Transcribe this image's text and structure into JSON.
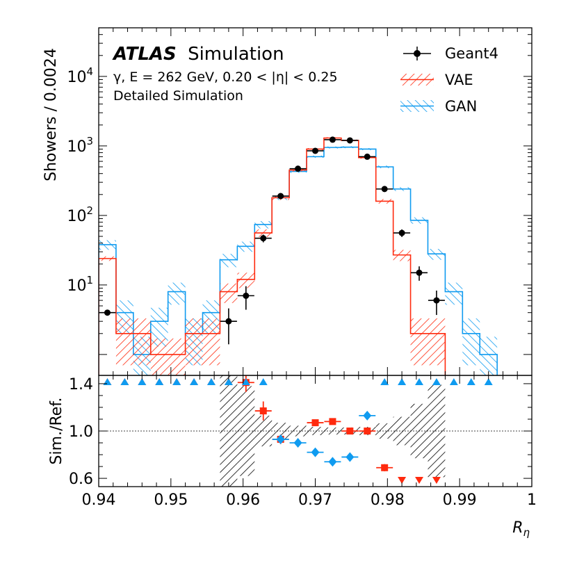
{
  "chart_data": [
    {
      "type": "histogram",
      "panel": "main",
      "ylabel": "Showers / 0.0024",
      "yscale": "log",
      "ylim": [
        0.5,
        50000
      ],
      "xlim": [
        0.94,
        1.0
      ],
      "experiment_label": "ATLAS",
      "experiment_suffix": "Simulation",
      "info_lines": [
        "γ, E = 262 GeV, 0.20 < |η| < 0.25",
        "Detailed Simulation"
      ],
      "legend": {
        "placement": "top-right",
        "entries": [
          {
            "label": "Geant4",
            "style": "marker"
          },
          {
            "label": "VAE",
            "style": "hatch",
            "color": "#ff2a0e"
          },
          {
            "label": "GAN",
            "style": "hatch",
            "color": "#0f9bf0"
          }
        ]
      },
      "bin_edges": [
        0.94,
        0.9424,
        0.9448,
        0.9472,
        0.9496,
        0.952,
        0.9544,
        0.9568,
        0.9592,
        0.9616,
        0.964,
        0.9664,
        0.9688,
        0.9712,
        0.9736,
        0.976,
        0.9784,
        0.9808,
        0.9832,
        0.9856,
        0.988,
        0.9904,
        0.9928,
        0.9952
      ],
      "series": [
        {
          "name": "Geant4",
          "color": "#000000",
          "x": [
            0.9412,
            0.958,
            0.9604,
            0.9628,
            0.9652,
            0.9676,
            0.97,
            0.9724,
            0.9748,
            0.9772,
            0.9796,
            0.982,
            0.9844,
            0.9868
          ],
          "values": [
            4,
            3,
            7,
            47,
            190,
            470,
            850,
            1230,
            1200,
            700,
            240,
            56,
            15,
            6
          ],
          "errors": [
            0,
            1.6,
            2.6,
            6,
            12,
            20,
            28,
            34,
            33,
            26,
            15,
            7,
            3.5,
            2.3
          ]
        },
        {
          "name": "VAE",
          "color": "#ff2a0e",
          "values": [
            24,
            2,
            2,
            1,
            1,
            2,
            2,
            8,
            12,
            56,
            180,
            450,
            900,
            1300,
            1200,
            680,
            160,
            27,
            2,
            2,
            null,
            null,
            null
          ],
          "uncertainty": [
            1.8,
            1.3,
            1.3,
            0.7,
            0.7,
            1.3,
            1.3,
            2.5,
            3,
            7,
            13,
            21,
            30,
            36,
            34,
            26,
            12,
            5,
            1.3,
            1.3,
            0,
            0,
            0
          ]
        },
        {
          "name": "GAN",
          "color": "#0f9bf0",
          "values": [
            38,
            4,
            1,
            3,
            8,
            2,
            4,
            23,
            36,
            74,
            180,
            430,
            700,
            950,
            960,
            900,
            500,
            240,
            85,
            28,
            8,
            2,
            1
          ],
          "uncertainty": [
            6,
            2,
            0.8,
            1.7,
            2.8,
            1.3,
            2,
            5,
            6,
            9,
            13,
            21,
            26,
            31,
            31,
            30,
            22,
            15,
            9,
            5,
            2.8,
            1.3,
            0.8
          ]
        }
      ]
    },
    {
      "type": "ratio",
      "panel": "ratio",
      "xlabel": "R_η",
      "ylabel": "Sim./Ref.",
      "ylim": [
        0.53,
        1.47
      ],
      "yticks": [
        0.6,
        1.0,
        1.4
      ],
      "xticks": [
        0.94,
        0.95,
        0.96,
        0.97,
        0.98,
        0.99,
        1.0
      ],
      "xtick_labels": [
        "0.94",
        "0.95",
        "0.96",
        "0.97",
        "0.98",
        "0.99",
        "1"
      ],
      "reference_band": {
        "x_edges": [
          0.9568,
          0.9592,
          0.9616,
          0.964,
          0.9664,
          0.9688,
          0.9712,
          0.9736,
          0.976,
          0.9784,
          0.9808,
          0.9832,
          0.9856,
          0.988
        ],
        "half_width": [
          0.55,
          0.38,
          0.13,
          0.07,
          0.045,
          0.035,
          0.03,
          0.03,
          0.035,
          0.065,
          0.12,
          0.23,
          0.39
        ]
      },
      "series": [
        {
          "name": "VAE",
          "color": "#ff2a0e",
          "marker": "square",
          "x": [
            0.9604,
            0.9628,
            0.9652,
            0.97,
            0.9724,
            0.9748,
            0.9772,
            0.9796
          ],
          "values": [
            1.41,
            1.17,
            0.93,
            1.07,
            1.08,
            1.0,
            1.0,
            0.69
          ],
          "errors": [
            0.08,
            0.08,
            0.04,
            0.02,
            0.02,
            0.02,
            0.02,
            0.03
          ],
          "off_scale": [
            {
              "x": 0.9412,
              "dir": "up"
            },
            {
              "x": 0.9436,
              "dir": "up"
            },
            {
              "x": 0.946,
              "dir": "up"
            },
            {
              "x": 0.9484,
              "dir": "up"
            },
            {
              "x": 0.9508,
              "dir": "up"
            },
            {
              "x": 0.9532,
              "dir": "up"
            },
            {
              "x": 0.9556,
              "dir": "up"
            },
            {
              "x": 0.958,
              "dir": "up"
            },
            {
              "x": 0.9604,
              "dir": "up"
            },
            {
              "x": 0.982,
              "dir": "down"
            },
            {
              "x": 0.9844,
              "dir": "down"
            },
            {
              "x": 0.9868,
              "dir": "down"
            }
          ]
        },
        {
          "name": "GAN",
          "color": "#0f9bf0",
          "marker": "diamond",
          "x": [
            0.9652,
            0.9676,
            0.97,
            0.9724,
            0.9748,
            0.9772
          ],
          "values": [
            0.93,
            0.9,
            0.82,
            0.74,
            0.78,
            1.13
          ],
          "errors": [
            0.02,
            0.02,
            0.02,
            0.01,
            0.01,
            0.02
          ],
          "off_scale": [
            {
              "x": 0.9412,
              "dir": "up"
            },
            {
              "x": 0.9436,
              "dir": "up"
            },
            {
              "x": 0.946,
              "dir": "up"
            },
            {
              "x": 0.9484,
              "dir": "up"
            },
            {
              "x": 0.9508,
              "dir": "up"
            },
            {
              "x": 0.9532,
              "dir": "up"
            },
            {
              "x": 0.9556,
              "dir": "up"
            },
            {
              "x": 0.958,
              "dir": "up"
            },
            {
              "x": 0.9604,
              "dir": "up"
            },
            {
              "x": 0.9628,
              "dir": "up"
            },
            {
              "x": 0.9796,
              "dir": "up"
            },
            {
              "x": 0.982,
              "dir": "up"
            },
            {
              "x": 0.9844,
              "dir": "up"
            },
            {
              "x": 0.9868,
              "dir": "up"
            },
            {
              "x": 0.9892,
              "dir": "up"
            },
            {
              "x": 0.9916,
              "dir": "up"
            },
            {
              "x": 0.994,
              "dir": "up"
            }
          ]
        }
      ]
    }
  ]
}
